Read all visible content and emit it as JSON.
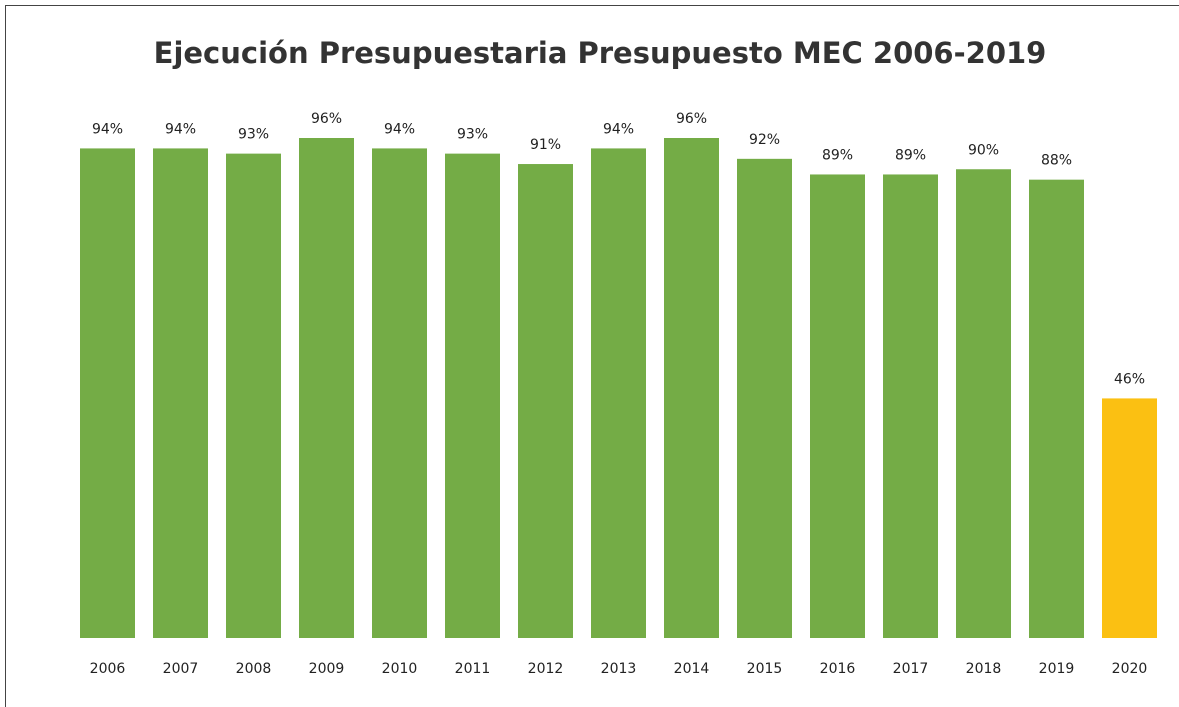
{
  "chart_data": {
    "type": "bar",
    "title": "Ejecución Presupuestaria Presupuesto MEC 2006-2019",
    "categories": [
      "2006",
      "2007",
      "2008",
      "2009",
      "2010",
      "2011",
      "2012",
      "2013",
      "2014",
      "2015",
      "2016",
      "2017",
      "2018",
      "2019",
      "2020"
    ],
    "values": [
      94,
      94,
      93,
      96,
      94,
      93,
      91,
      94,
      96,
      92,
      89,
      89,
      90,
      88,
      46
    ],
    "value_labels": [
      "94%",
      "94%",
      "93%",
      "96%",
      "94%",
      "93%",
      "91%",
      "94%",
      "96%",
      "92%",
      "89%",
      "89%",
      "90%",
      "88%",
      "46%"
    ],
    "colors": [
      "#74ac46",
      "#74ac46",
      "#74ac46",
      "#74ac46",
      "#74ac46",
      "#74ac46",
      "#74ac46",
      "#74ac46",
      "#74ac46",
      "#74ac46",
      "#74ac46",
      "#74ac46",
      "#74ac46",
      "#74ac46",
      "#fbc012"
    ]
  }
}
